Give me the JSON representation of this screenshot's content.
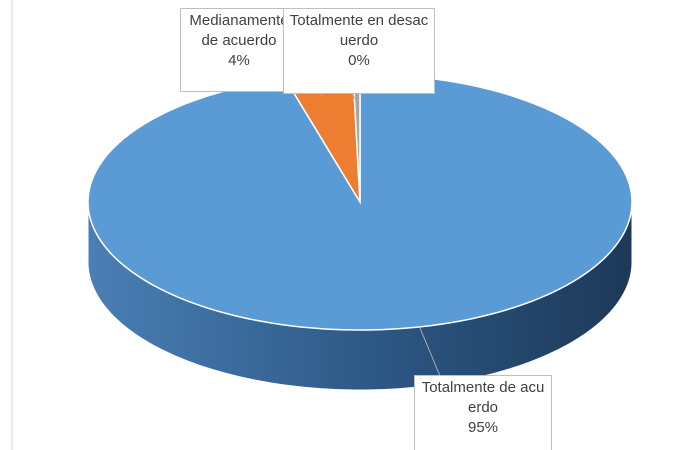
{
  "chart_data": {
    "type": "pie3d",
    "categories": [
      "Totalmente de acuerdo",
      "Medianamente de acuerdo",
      "Totalmente en desacuerdo"
    ],
    "values": [
      95,
      4,
      0.4
    ],
    "value_labels": [
      "95%",
      "4%",
      "0%"
    ],
    "colors": [
      "#5b9bd5",
      "#ed7d31",
      "#a5a5a5"
    ]
  }
}
